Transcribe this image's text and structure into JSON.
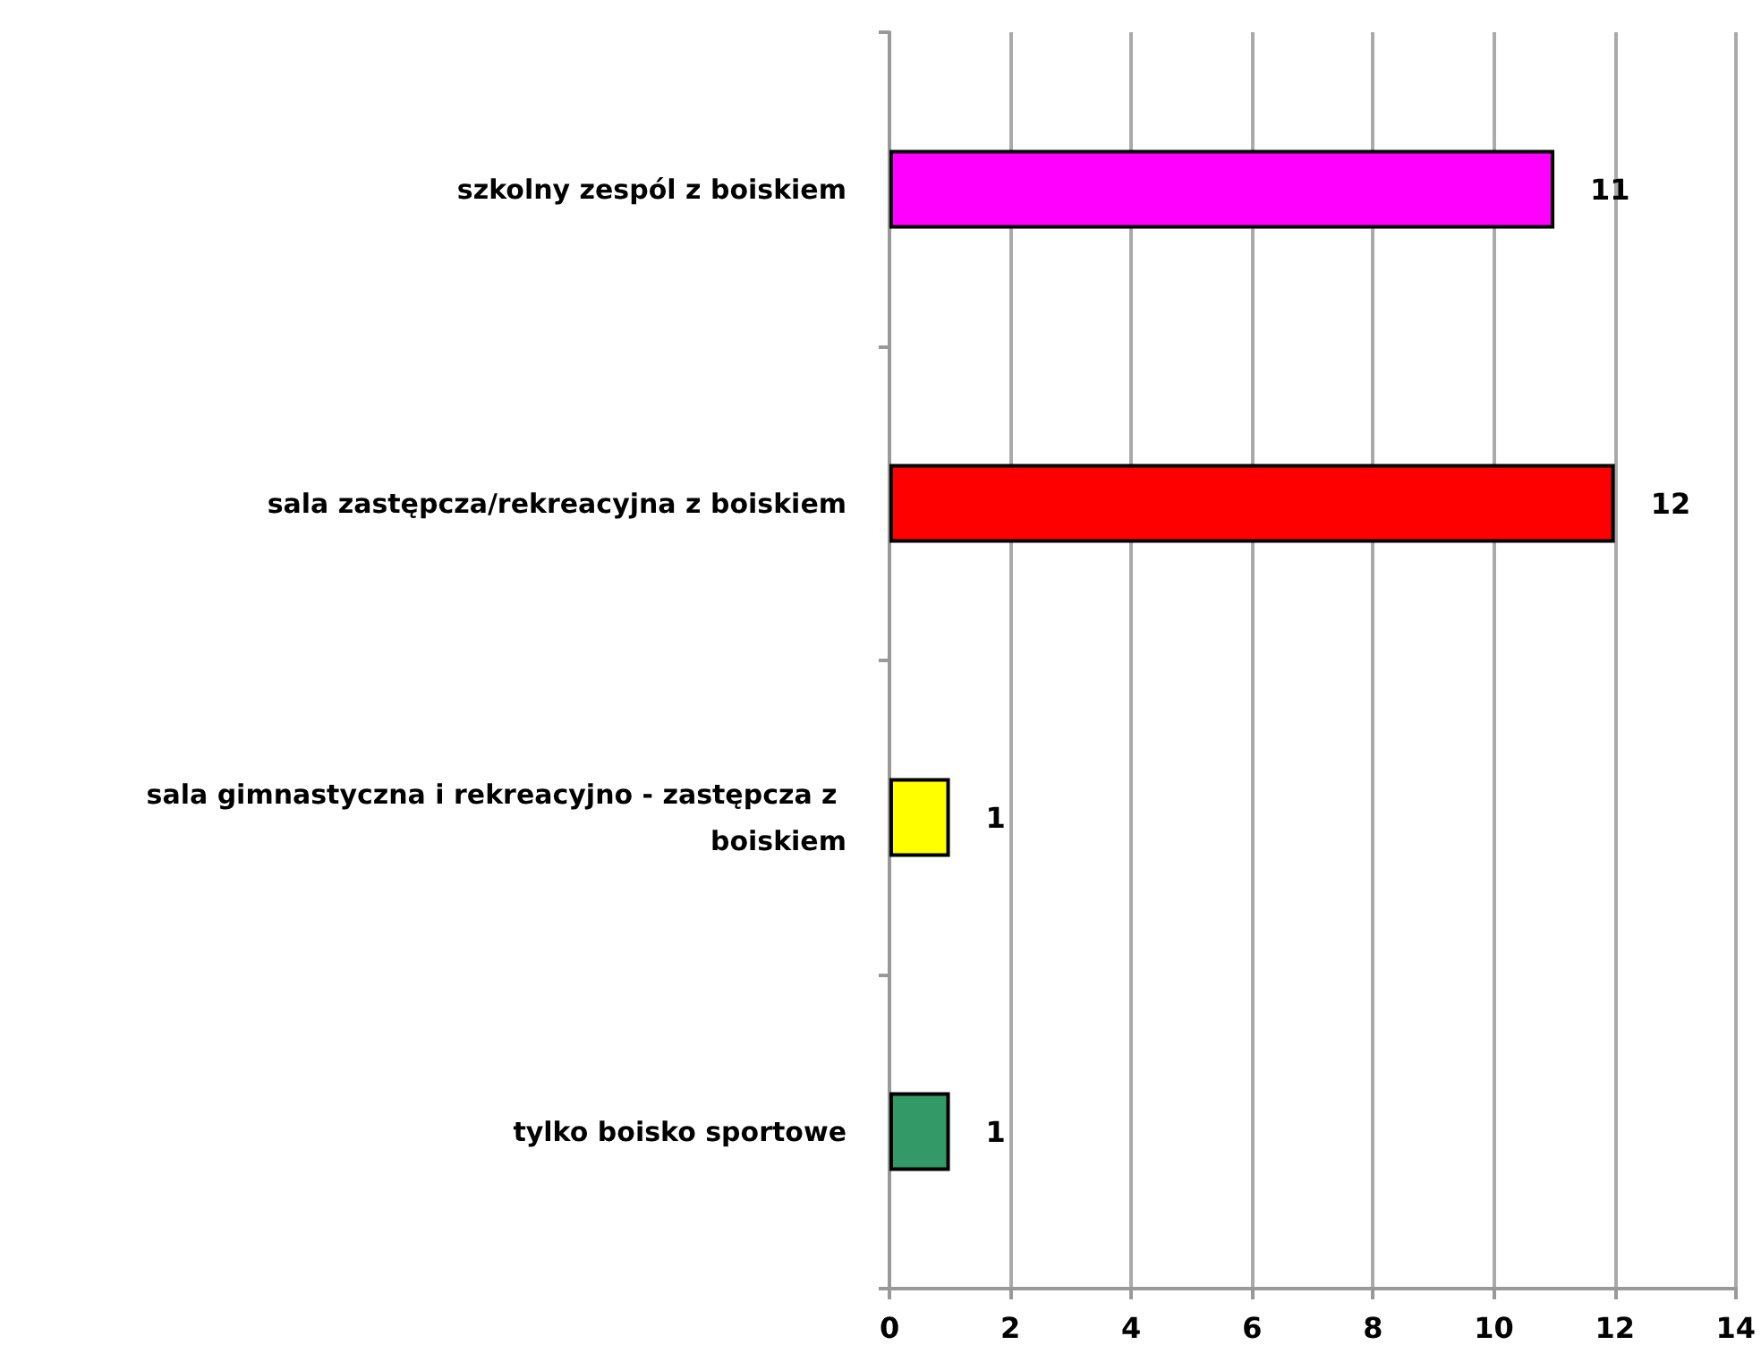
{
  "chart_data": {
    "type": "bar",
    "orientation": "horizontal",
    "categories": [
      "szkolny zespól z boiskiem",
      "sala zastępcza/rekreacyjna z boiskiem",
      "sala gimnastyczna i rekreacyjno - zastępcza z boiskiem",
      "tylko boisko sportowe"
    ],
    "values": [
      11,
      12,
      1,
      1
    ],
    "colors": [
      "#ff00ff",
      "#ff0000",
      "#ffff00",
      "#339966"
    ],
    "xlim": [
      0,
      14
    ],
    "xticks": [
      0,
      2,
      4,
      6,
      8,
      10,
      12,
      14
    ],
    "grid": "x",
    "data_labels": true
  }
}
